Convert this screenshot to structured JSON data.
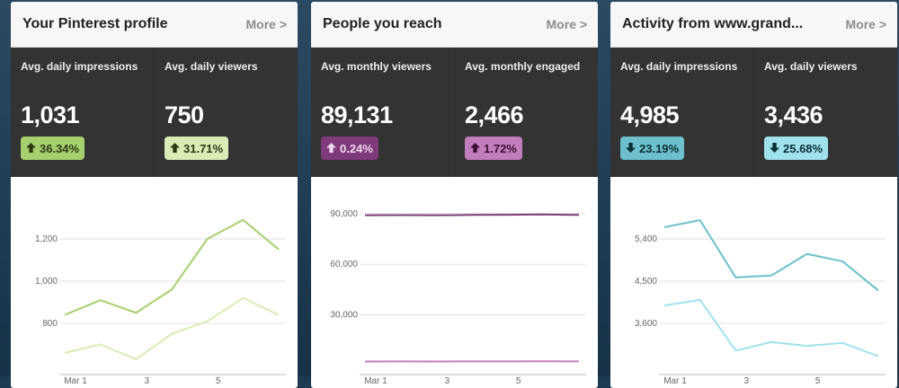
{
  "cards": [
    {
      "title": "Your Pinterest profile",
      "more": "More >",
      "stats": [
        {
          "label": "Avg. daily impressions",
          "value": "1,031",
          "change": "36.34%",
          "direction": "up",
          "badge_bg": "#a6cf6e",
          "badge_fg": "#2b3a12"
        },
        {
          "label": "Avg. daily viewers",
          "value": "750",
          "change": "31.71%",
          "direction": "up",
          "badge_bg": "#d9ecb5",
          "badge_fg": "#2b3a12"
        }
      ]
    },
    {
      "title": "People you reach",
      "more": "More >",
      "stats": [
        {
          "label": "Avg. monthly viewers",
          "value": "89,131",
          "change": "0.24%",
          "direction": "up",
          "badge_bg": "#7e3a7a",
          "badge_fg": "#f0d8ee"
        },
        {
          "label": "Avg. monthly engaged",
          "value": "2,466",
          "change": "1.72%",
          "direction": "up",
          "badge_bg": "#c27dbd",
          "badge_fg": "#3a0f36"
        }
      ]
    },
    {
      "title": "Activity from www.grand...",
      "more": "More >",
      "stats": [
        {
          "label": "Avg. daily impressions",
          "value": "4,985",
          "change": "23.19%",
          "direction": "down",
          "badge_bg": "#6cc0cd",
          "badge_fg": "#0c3036"
        },
        {
          "label": "Avg. daily viewers",
          "value": "3,436",
          "change": "25.68%",
          "direction": "down",
          "badge_bg": "#9fe2ee",
          "badge_fg": "#0c3036"
        }
      ]
    }
  ],
  "chart_data": [
    {
      "type": "line",
      "ylim": [
        600,
        1400
      ],
      "yticks": [
        800,
        1000,
        1200
      ],
      "ytick_labels": [
        "800",
        "1,000",
        "1,200"
      ],
      "xtick_labels": [
        "Mar 1",
        "3",
        "5"
      ],
      "series": [
        {
          "values": [
            840,
            910,
            850,
            960,
            1200,
            1290,
            1150
          ],
          "color": "#a6cf6e"
        },
        {
          "values": [
            660,
            700,
            630,
            750,
            810,
            920,
            840
          ],
          "color": "#d9ecb5"
        }
      ]
    },
    {
      "type": "line",
      "ylim": [
        0,
        100000
      ],
      "yticks": [
        30000,
        60000,
        90000
      ],
      "ytick_labels": [
        "30,000",
        "60,000",
        "90,000"
      ],
      "xtick_labels": [
        "Mar 1",
        "3",
        "5"
      ],
      "series": [
        {
          "values": [
            89000,
            89100,
            89000,
            89200,
            89300,
            89500,
            89200
          ],
          "color": "#7e3a7a"
        },
        {
          "values": [
            2400,
            2450,
            2420,
            2470,
            2480,
            2500,
            2460
          ],
          "color": "#c27dbd"
        }
      ]
    },
    {
      "type": "line",
      "ylim": [
        2700,
        6300
      ],
      "yticks": [
        3600,
        4500,
        5400
      ],
      "ytick_labels": [
        "3,600",
        "4,500",
        "5,400"
      ],
      "xtick_labels": [
        "Mar 1",
        "3",
        "5"
      ],
      "series": [
        {
          "values": [
            5650,
            5800,
            4580,
            4620,
            5080,
            4920,
            4300
          ],
          "color": "#6cc0cd"
        },
        {
          "values": [
            3980,
            4100,
            3020,
            3200,
            3120,
            3180,
            2900
          ],
          "color": "#9fe2ee"
        }
      ]
    }
  ]
}
